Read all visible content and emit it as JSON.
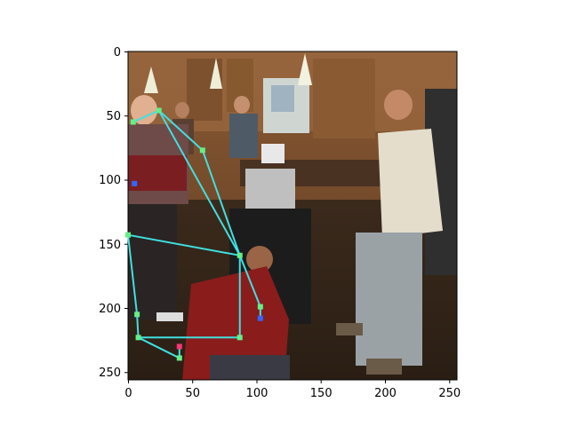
{
  "figure": {
    "image_description": "Photo of men in a kitchen renovation scene with a pose skeleton overlay",
    "x_ticks": [
      "0",
      "50",
      "100",
      "150",
      "200",
      "250"
    ],
    "y_ticks": [
      "0",
      "50",
      "100",
      "150",
      "200",
      "250"
    ],
    "x_range": [
      0,
      256
    ],
    "y_range": [
      256,
      0
    ],
    "overlay": {
      "edge_color": "#40e0e0",
      "joint_color": "#66ee88",
      "accent_colors": [
        "#3366ff",
        "#ff3377"
      ],
      "joints": [
        {
          "x": 24,
          "y": 46
        },
        {
          "x": 4,
          "y": 55
        },
        {
          "x": 58,
          "y": 77
        },
        {
          "x": 87,
          "y": 159
        },
        {
          "x": 103,
          "y": 199
        },
        {
          "x": 103,
          "y": 208
        },
        {
          "x": 0,
          "y": 143
        },
        {
          "x": 7,
          "y": 205
        },
        {
          "x": 8,
          "y": 223
        },
        {
          "x": 87,
          "y": 223
        },
        {
          "x": 40,
          "y": 239
        },
        {
          "x": 40,
          "y": 230
        },
        {
          "x": 5,
          "y": 103
        }
      ],
      "edges": [
        [
          1,
          0
        ],
        [
          0,
          2
        ],
        [
          2,
          3
        ],
        [
          3,
          4
        ],
        [
          4,
          5
        ],
        [
          0,
          3
        ],
        [
          3,
          6
        ],
        [
          6,
          7
        ],
        [
          7,
          8
        ],
        [
          8,
          9
        ],
        [
          9,
          3
        ],
        [
          8,
          10
        ],
        [
          10,
          11
        ]
      ]
    }
  }
}
